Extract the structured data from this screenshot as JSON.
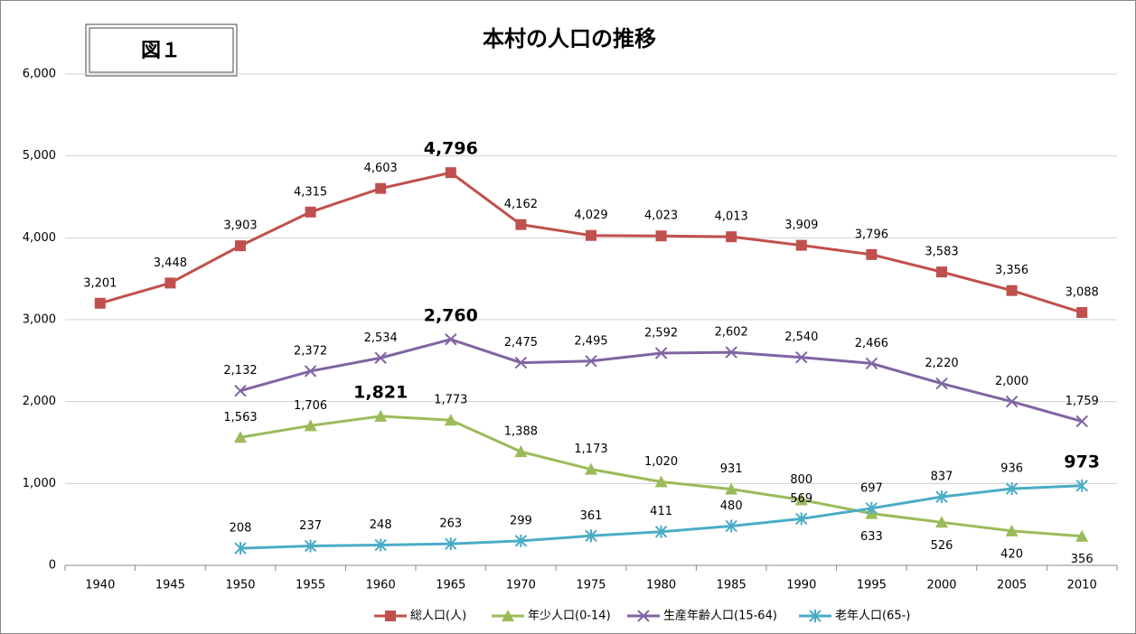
{
  "chart_data": {
    "type": "line",
    "title": "本村の人口の推移",
    "figure_label": "図１",
    "categories": [
      "1940",
      "1945",
      "1950",
      "1955",
      "1960",
      "1965",
      "1970",
      "1975",
      "1980",
      "1985",
      "1990",
      "1995",
      "2000",
      "2005",
      "2010"
    ],
    "series": [
      {
        "name": "総人口(人)",
        "color": "#c0504d",
        "marker": "square",
        "values": [
          3201,
          3448,
          3903,
          4315,
          4603,
          4796,
          4162,
          4029,
          4023,
          4013,
          3909,
          3796,
          3583,
          3356,
          3088
        ],
        "value_labels": [
          "3,201",
          "3,448",
          "3,903",
          "4,315",
          "4,603",
          "4,796",
          "4,162",
          "4,029",
          "4,023",
          "4,013",
          "3,909",
          "3,796",
          "3,583",
          "3,356",
          "3,088"
        ]
      },
      {
        "name": "年少人口(0-14)",
        "color": "#9bbb59",
        "marker": "triangle",
        "values": [
          null,
          null,
          1563,
          1706,
          1821,
          1773,
          1388,
          1173,
          1020,
          931,
          800,
          633,
          526,
          420,
          356
        ],
        "value_labels": [
          null,
          null,
          "1,563",
          "1,706",
          "1,821",
          "1,773",
          "1,388",
          "1,173",
          "1,020",
          "931",
          "800",
          "633",
          "526",
          "420",
          "356"
        ]
      },
      {
        "name": "生産年齢人口(15-64)",
        "color": "#8064a2",
        "marker": "x",
        "values": [
          null,
          null,
          2132,
          2372,
          2534,
          2760,
          2475,
          2495,
          2592,
          2602,
          2540,
          2466,
          2220,
          2000,
          1759
        ],
        "value_labels": [
          null,
          null,
          "2,132",
          "2,372",
          "2,534",
          "2,760",
          "2,475",
          "2,495",
          "2,592",
          "2,602",
          "2,540",
          "2,466",
          "2,220",
          "2,000",
          "1,759"
        ]
      },
      {
        "name": "老年人口(65-)",
        "color": "#4bacc6",
        "marker": "asterisk",
        "values": [
          null,
          null,
          208,
          237,
          248,
          263,
          299,
          361,
          411,
          480,
          569,
          697,
          837,
          936,
          973
        ],
        "value_labels": [
          null,
          null,
          "208",
          "237",
          "248",
          "263",
          "299",
          "361",
          "411",
          "480",
          "569",
          "697",
          "837",
          "936",
          "973"
        ]
      }
    ],
    "ylim": [
      0,
      6000
    ],
    "yticks": [
      0,
      {
        "value": 1000,
        "label": "1,000"
      },
      {
        "value": 2000,
        "label": "2,000"
      },
      {
        "value": 3000,
        "label": "3,000"
      },
      {
        "value": 4000,
        "label": "4,000"
      },
      {
        "value": 5000,
        "label": "5,000"
      },
      {
        "value": 6000,
        "label": "6,000"
      }
    ],
    "grid": true,
    "legend": "bottom"
  }
}
